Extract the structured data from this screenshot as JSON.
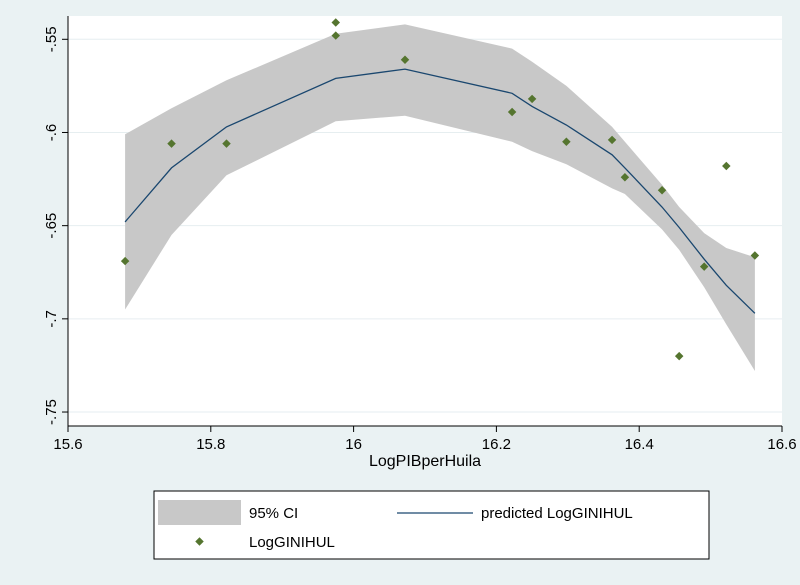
{
  "chart_data": {
    "type": "scatter",
    "xlabel": "LogPIBperHuila",
    "ylabel": "",
    "xlim": [
      15.6,
      16.6
    ],
    "ylim": [
      -0.75,
      -0.55
    ],
    "xticks": [
      15.6,
      15.8,
      16,
      16.2,
      16.4,
      16.6
    ],
    "yticks": [
      -0.55,
      -0.6,
      -0.65,
      -0.7,
      -0.75
    ],
    "xtick_labels": [
      "15.6",
      "15.8",
      "16",
      "16.2",
      "16.4",
      "16.6"
    ],
    "ytick_labels": [
      "-.55",
      "-.6",
      "-.65",
      "-.7",
      "-.75"
    ],
    "grid": "horizontal",
    "legend_position": "bottom",
    "legend": {
      "ci_label": "95% CI",
      "line_label": "predicted LogGINIHUL",
      "points_label": "LogGINIHUL"
    },
    "colors": {
      "ci_band": "#c8c8c8",
      "fit_line": "#1a476f",
      "points": "#55752f",
      "background": "#eaf2f3",
      "plot_area": "#ffffff",
      "grid": "#e6eef0"
    },
    "ci_band": {
      "x": [
        15.68,
        15.745,
        15.822,
        15.975,
        16.072,
        16.222,
        16.25,
        16.298,
        16.362,
        16.38,
        16.432,
        16.456,
        16.491,
        16.522,
        16.562
      ],
      "upper": [
        -0.601,
        -0.587,
        -0.572,
        -0.547,
        -0.542,
        -0.555,
        -0.562,
        -0.575,
        -0.597,
        -0.605,
        -0.628,
        -0.64,
        -0.654,
        -0.662,
        -0.667
      ],
      "lower": [
        -0.695,
        -0.655,
        -0.623,
        -0.594,
        -0.591,
        -0.605,
        -0.61,
        -0.617,
        -0.63,
        -0.633,
        -0.652,
        -0.663,
        -0.683,
        -0.703,
        -0.728
      ]
    },
    "fitted": {
      "x": [
        15.68,
        15.745,
        15.822,
        15.975,
        16.072,
        16.222,
        16.25,
        16.298,
        16.362,
        16.38,
        16.432,
        16.456,
        16.491,
        16.522,
        16.562
      ],
      "y": [
        -0.648,
        -0.619,
        -0.597,
        -0.571,
        -0.566,
        -0.579,
        -0.586,
        -0.596,
        -0.612,
        -0.619,
        -0.64,
        -0.651,
        -0.668,
        -0.682,
        -0.697
      ]
    },
    "points": {
      "x": [
        15.68,
        15.745,
        15.822,
        15.975,
        15.975,
        16.072,
        16.222,
        16.25,
        16.298,
        16.362,
        16.38,
        16.432,
        16.456,
        16.491,
        16.522,
        16.562
      ],
      "y": [
        -0.669,
        -0.606,
        -0.606,
        -0.541,
        -0.548,
        -0.561,
        -0.589,
        -0.582,
        -0.605,
        -0.604,
        -0.624,
        -0.631,
        -0.72,
        -0.672,
        -0.618,
        -0.666
      ]
    }
  }
}
